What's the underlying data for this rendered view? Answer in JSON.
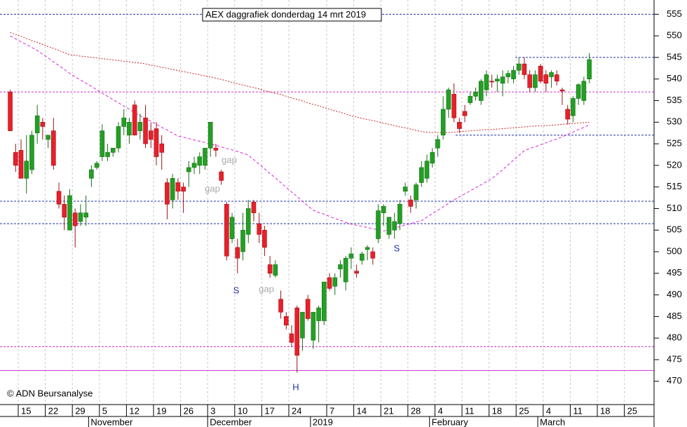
{
  "chart_data": {
    "type": "candlestick",
    "title": "AEX daggrafiek donderdag 14 mrt 2019",
    "copyright": "© ADN Beursanalyse",
    "ylim": [
      464.6,
      558.3
    ],
    "yticks": [
      470,
      475,
      480,
      485,
      490,
      495,
      500,
      505,
      510,
      515,
      520,
      525,
      530,
      535,
      540,
      545,
      550,
      555
    ],
    "up_color": "#22a022",
    "down_color": "#e8202a",
    "categories": [
      null,
      null,
      "15",
      null,
      null,
      null,
      null,
      "22",
      null,
      null,
      null,
      null,
      "29",
      null,
      null,
      null,
      null,
      "5",
      null,
      null,
      null,
      null,
      "12",
      null,
      null,
      null,
      null,
      "19",
      null,
      null,
      null,
      null,
      "26",
      null,
      null,
      null,
      null,
      "3",
      null,
      null,
      null,
      null,
      "10",
      null,
      null,
      null,
      null,
      "17",
      null,
      null,
      null,
      null,
      "24",
      null,
      null,
      null,
      null,
      null,
      null,
      "7",
      null,
      null,
      null,
      null,
      "14",
      null,
      null,
      null,
      null,
      "21",
      null,
      null,
      null,
      null,
      "28",
      null,
      null,
      null,
      null,
      "4",
      null,
      null,
      null,
      null,
      "11",
      null,
      null,
      null,
      null,
      "18",
      null,
      null,
      null,
      null,
      "25",
      null,
      null,
      null,
      null,
      "4",
      null,
      null,
      null,
      null,
      "11",
      null,
      null,
      null,
      null,
      "18",
      null,
      null,
      null,
      null,
      "25",
      null,
      null,
      null,
      null
    ],
    "months": [
      null,
      null,
      null,
      null,
      null,
      null,
      null,
      null,
      null,
      null,
      null,
      null,
      null,
      null,
      null,
      "November",
      null,
      null,
      null,
      null,
      null,
      null,
      null,
      null,
      null,
      null,
      null,
      null,
      null,
      null,
      null,
      null,
      null,
      null,
      null,
      null,
      null,
      "December",
      null,
      null,
      null,
      null,
      null,
      null,
      null,
      null,
      null,
      null,
      null,
      null,
      null,
      null,
      null,
      null,
      null,
      null,
      "2019",
      null,
      null,
      null,
      null,
      null,
      null,
      null,
      null,
      null,
      null,
      null,
      null,
      null,
      null,
      null,
      null,
      null,
      null,
      null,
      null,
      null,
      "February",
      null,
      null,
      null,
      null,
      null,
      null,
      null,
      null,
      null,
      null,
      null,
      null,
      null,
      null,
      null,
      null,
      null,
      null,
      null,
      "March",
      null,
      null,
      null,
      null,
      null,
      null,
      null,
      null,
      null,
      null,
      null,
      null,
      null,
      null,
      null,
      null,
      null,
      null,
      null,
      null
    ],
    "open": [
      537,
      523,
      523.5,
      517,
      519,
      527.5,
      530,
      526,
      528,
      514,
      511,
      505,
      509,
      507,
      508,
      517,
      519.5,
      522,
      522,
      523,
      524,
      529,
      527,
      534,
      528,
      531,
      528,
      528.5,
      525,
      516,
      512,
      516,
      515,
      518.5,
      519.5,
      520,
      520,
      524,
      524,
      518.5,
      511,
      503,
      501,
      500,
      504,
      511.5,
      506.5,
      505,
      497,
      494.5,
      489,
      485,
      481,
      487,
      480,
      489,
      479.5,
      484,
      484,
      494,
      492,
      496,
      493,
      498.5,
      495.5,
      498,
      500.5,
      500,
      503,
      509,
      504,
      505,
      506.5,
      514,
      512,
      512,
      516,
      517,
      520.5,
      524,
      527,
      533,
      536.5,
      530,
      532.5,
      534.5,
      536,
      535,
      537.5,
      539.5,
      539.5,
      539,
      540.5,
      540,
      542,
      543.5,
      541,
      538,
      543,
      541,
      540.5,
      541,
      537.5,
      533,
      531.5,
      535.5,
      535,
      540,
      null,
      null,
      null,
      null,
      null,
      null,
      null,
      null,
      null,
      null,
      null
    ],
    "high": [
      537.5,
      525,
      526,
      527,
      528,
      534,
      531,
      527,
      531,
      516,
      513,
      514.5,
      510,
      511,
      513,
      520,
      521,
      529.5,
      525,
      524,
      530,
      533,
      531,
      535,
      532,
      534,
      530,
      530,
      527,
      517,
      518,
      517,
      516,
      521,
      522,
      523,
      524,
      530,
      525,
      519,
      511.5,
      509,
      503,
      509,
      512,
      512,
      509,
      506,
      499,
      498,
      491,
      486,
      483,
      487.5,
      486,
      490,
      486,
      487.5,
      493,
      495,
      495,
      498,
      499,
      501,
      497,
      500,
      501.5,
      501,
      511,
      511,
      508,
      509,
      512,
      516,
      513,
      516,
      521,
      522.5,
      524,
      527,
      536,
      538,
      539,
      531,
      534,
      537,
      538,
      540,
      542,
      541,
      541,
      542,
      542,
      543,
      545,
      545,
      542,
      542,
      543.5,
      542,
      542,
      542,
      538,
      534,
      536,
      539,
      540.5,
      546,
      null,
      null,
      null,
      null,
      null,
      null,
      null,
      null,
      null,
      null,
      null
    ],
    "low": [
      528,
      518.5,
      517,
      513.5,
      518,
      525,
      526,
      524,
      519,
      510,
      505,
      505,
      501,
      506,
      506,
      515,
      519,
      521,
      521,
      522,
      523,
      527,
      525,
      527,
      526,
      524,
      524,
      520,
      519,
      507.5,
      510,
      512,
      509,
      515,
      518,
      518,
      519,
      522,
      522,
      515.5,
      498,
      502,
      495,
      498,
      502,
      507,
      502,
      499,
      494,
      494,
      484.5,
      482,
      478,
      472,
      477,
      484,
      477.5,
      479,
      483,
      491,
      490,
      494,
      491,
      496,
      494,
      497,
      498,
      497,
      502,
      506,
      503,
      503,
      505,
      513,
      509,
      510,
      515,
      516,
      519.5,
      522,
      526,
      531,
      530,
      527.5,
      530,
      534,
      535,
      534,
      536,
      538,
      537,
      536,
      539,
      539,
      541,
      540,
      537,
      537,
      539,
      537,
      538,
      538.5,
      534,
      529.5,
      530,
      534,
      534,
      539,
      null,
      null,
      null,
      null,
      null,
      null,
      null,
      null,
      null,
      null,
      null
    ],
    "close": [
      528,
      520,
      517,
      521,
      527,
      531.5,
      529,
      527,
      520,
      511,
      508,
      513,
      506,
      509,
      509,
      519,
      520.5,
      528,
      523,
      524,
      529,
      531,
      530,
      527,
      530,
      525,
      526,
      522,
      523,
      511,
      517,
      514,
      514,
      519.5,
      520.5,
      522,
      524,
      530,
      523.5,
      516.5,
      499,
      508,
      498.5,
      505,
      510,
      509,
      504,
      501,
      495,
      497,
      486,
      483,
      479,
      476,
      486,
      484.5,
      486,
      487,
      493,
      491.5,
      494,
      497,
      498.5,
      499.5,
      495,
      499.5,
      501,
      498.5,
      509.5,
      510.5,
      508,
      507,
      511,
      515,
      510.5,
      515.5,
      519.5,
      521,
      523,
      526,
      533,
      537.5,
      531,
      528.5,
      531.5,
      536,
      537,
      539.5,
      541,
      539.3,
      540,
      540.5,
      541.3,
      542,
      543.5,
      541,
      538,
      541,
      539.5,
      539,
      541.5,
      539.5,
      537.2,
      530.7,
      535.5,
      538.7,
      539.5,
      544.5,
      null,
      null,
      null,
      null,
      null,
      null,
      null,
      null,
      null,
      null,
      null
    ],
    "ma_lines": [
      {
        "color": "#cc2222",
        "dash": "2,2",
        "values": [
          550.8,
          550.3,
          549.9,
          549.4,
          548.9,
          548.5,
          548.0,
          547.5,
          547.1,
          546.6,
          546.1,
          545.6,
          545.5,
          545.3,
          545.2,
          545.0,
          544.9,
          544.7,
          544.6,
          544.4,
          544.3,
          544.1,
          544.0,
          543.8,
          543.7,
          543.5,
          543.2,
          543.0,
          542.7,
          542.5,
          542.2,
          542.0,
          541.7,
          541.5,
          541.2,
          541.0,
          540.7,
          540.5,
          540.2,
          539.9,
          539.6,
          539.2,
          538.9,
          538.6,
          538.3,
          538.0,
          537.7,
          537.3,
          537.0,
          536.7,
          536.4,
          536.0,
          535.6,
          535.3,
          534.9,
          534.5,
          534.1,
          533.8,
          533.4,
          533.0,
          532.6,
          532.3,
          531.9,
          531.5,
          531.2,
          530.9,
          530.6,
          530.4,
          530.1,
          529.8,
          529.5,
          529.2,
          528.9,
          528.7,
          528.4,
          528.1,
          527.8,
          527.7,
          527.6,
          527.6,
          527.6,
          527.6,
          527.7,
          527.8,
          527.9,
          528.0,
          528.1,
          528.2,
          528.3,
          528.3,
          528.4,
          528.5,
          528.6,
          528.7,
          528.8,
          528.9,
          529.0,
          529.1,
          529.2,
          529.2,
          529.3,
          529.4,
          529.5,
          529.6,
          529.7,
          529.8,
          529.9,
          530.0,
          null,
          null,
          null,
          null,
          null,
          null,
          null,
          null,
          null,
          null,
          null
        ]
      },
      {
        "color": "#dd22dd",
        "dash": "4,3",
        "values": [
          550.0,
          549.3,
          548.6,
          548.0,
          547.3,
          546.6,
          545.7,
          544.9,
          544.0,
          543.1,
          542.2,
          541.3,
          540.5,
          539.8,
          539.0,
          538.3,
          537.5,
          536.7,
          536.0,
          535.2,
          534.5,
          533.7,
          533.0,
          532.2,
          531.5,
          530.8,
          530.2,
          529.5,
          528.8,
          528.2,
          527.5,
          526.8,
          526.5,
          526.2,
          525.9,
          525.6,
          525.3,
          525.0,
          524.6,
          524.3,
          523.9,
          523.6,
          523.2,
          522.8,
          522.4,
          521.3,
          520.3,
          519.2,
          518.1,
          517.1,
          516.0,
          514.9,
          513.8,
          512.8,
          511.7,
          510.6,
          509.6,
          509.1,
          508.7,
          508.2,
          507.7,
          507.3,
          506.8,
          506.4,
          506.1,
          505.9,
          505.6,
          505.3,
          505.1,
          504.8,
          505.1,
          505.5,
          505.8,
          506.2,
          506.5,
          506.9,
          507.2,
          508.0,
          508.8,
          509.6,
          510.4,
          511.2,
          512.0,
          512.7,
          513.4,
          514.1,
          514.8,
          515.5,
          516.2,
          516.9,
          518.0,
          519.0,
          520.1,
          521.2,
          522.3,
          523.4,
          523.9,
          524.3,
          524.8,
          525.2,
          525.7,
          526.1,
          526.6,
          527.2,
          527.7,
          528.3,
          528.8,
          529.4,
          null,
          null,
          null,
          null,
          null,
          null,
          null,
          null,
          null,
          null,
          null
        ]
      }
    ],
    "levels": [
      {
        "value": 555,
        "color": "#2233aa",
        "style": "dashed"
      },
      {
        "value": 545,
        "color": "#2233aa",
        "style": "dashed"
      },
      {
        "value": 537,
        "color": "#cc33cc",
        "style": "dashed"
      },
      {
        "value": 527,
        "color": "#2233aa",
        "style": "dashed"
      },
      {
        "value": 511.7,
        "color": "#2233aa",
        "style": "dashed"
      },
      {
        "value": 506.5,
        "color": "#2233aa",
        "style": "dashed"
      },
      {
        "value": 478,
        "color": "#cc33cc",
        "style": "dashed"
      },
      {
        "value": 472.5,
        "color": "#cc33cc",
        "style": "solid"
      }
    ],
    "annotations": [
      {
        "text": "gap",
        "color": "#aaaaaa"
      },
      {
        "text": "gap",
        "color": "#aaaaaa"
      },
      {
        "text": "gap",
        "color": "#aaaaaa"
      },
      {
        "text": "S",
        "color": "#2233aa"
      },
      {
        "text": "S",
        "color": "#2233aa"
      },
      {
        "text": "H",
        "color": "#2233aa"
      }
    ]
  }
}
